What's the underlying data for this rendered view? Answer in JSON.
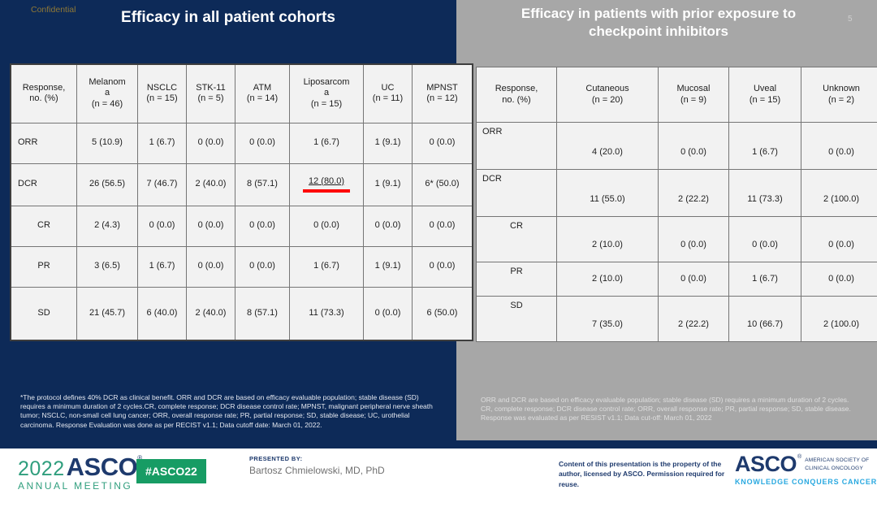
{
  "confidential_label": "Confidential",
  "page_number": "5",
  "colors": {
    "slide_navy": "#0D2A58",
    "panel_gray": "#A7A7A7",
    "table_cell_bg": "#F2F2F2",
    "highlight_red": "#FE0000",
    "asco_green": "#179C64",
    "asco_navy": "#1E3A6D",
    "asco_teal": "#2F9E7D",
    "asco_blue": "#2AA9E0",
    "confidential_gold": "#8F7836"
  },
  "left_panel": {
    "title": "Efficacy in all patient cohorts",
    "table": {
      "header": [
        "Response,\nno. (%)",
        "Melanom\na\n(n = 46)",
        "NSCLC\n(n = 15)",
        "STK-11\n(n = 5)",
        "ATM\n(n = 14)",
        "Liposarcom\na\n(n = 15)",
        "UC\n(n = 11)",
        "MPNST\n(n = 12)"
      ],
      "rows": [
        {
          "label": "ORR",
          "indent": false,
          "values": [
            "5 (10.9)",
            "1 (6.7)",
            "0 (0.0)",
            "0 (0.0)",
            "1 (6.7)",
            "1 (9.1)",
            "0 (0.0)"
          ]
        },
        {
          "label": "DCR",
          "indent": false,
          "values": [
            "26 (56.5)",
            "7 (46.7)",
            "2 (40.0)",
            "8 (57.1)",
            {
              "text": "12 (80.0)",
              "highlight": "red-underline"
            },
            "1 (9.1)",
            "6* (50.0)"
          ]
        },
        {
          "label": "CR",
          "indent": true,
          "values": [
            "2 (4.3)",
            "0 (0.0)",
            "0 (0.0)",
            "0 (0.0)",
            "0 (0.0)",
            "0 (0.0)",
            "0 (0.0)"
          ]
        },
        {
          "label": "PR",
          "indent": true,
          "values": [
            "3 (6.5)",
            "1 (6.7)",
            "0 (0.0)",
            "0 (0.0)",
            "1 (6.7)",
            "1 (9.1)",
            "0 (0.0)"
          ]
        },
        {
          "label": "SD",
          "indent": true,
          "values": [
            "21 (45.7)",
            "6 (40.0)",
            "2 (40.0)",
            "8 (57.1)",
            "11 (73.3)",
            "0 (0.0)",
            "6 (50.0)"
          ]
        }
      ]
    },
    "footnote": "*The protocol defines 40% DCR as clinical benefit. ORR and DCR are based on efficacy evaluable population; stable disease (SD) requires a minimum duration of 2 cycles.CR, complete response; DCR disease control rate; MPNST, malignant peripheral nerve sheath tumor; NSCLC, non-small cell lung cancer; ORR, overall response rate; PR, partial response; SD, stable disease; UC, urothelial carcinoma. Response Evaluation was done as per RECIST v1.1; Data cutoff date: March 01, 2022."
  },
  "right_panel": {
    "title": "Efficacy in patients with prior exposure to\ncheckpoint inhibitors",
    "table": {
      "header": [
        "Response,\nno. (%)",
        "Cutaneous\n(n = 20)",
        "Mucosal\n(n = 9)",
        "Uveal\n(n = 15)",
        "Unknown\n(n = 2)"
      ],
      "rows": [
        {
          "label": "ORR",
          "indent": false,
          "values": [
            "4 (20.0)",
            "0 (0.0)",
            "1 (6.7)",
            "0 (0.0)"
          ]
        },
        {
          "label": "DCR",
          "indent": false,
          "values": [
            "11 (55.0)",
            "2 (22.2)",
            "11 (73.3)",
            "2 (100.0)"
          ]
        },
        {
          "label": "CR",
          "indent": true,
          "values": [
            "2 (10.0)",
            "0 (0.0)",
            "0 (0.0)",
            "0 (0.0)"
          ]
        },
        {
          "label": "PR",
          "indent": true,
          "values": [
            "2 (10.0)",
            "0 (0.0)",
            "1 (6.7)",
            "0 (0.0)"
          ]
        },
        {
          "label": "SD",
          "indent": true,
          "values": [
            "7 (35.0)",
            "2 (22.2)",
            "10 (66.7)",
            "2 (100.0)"
          ]
        }
      ]
    },
    "footnote": "ORR and DCR are based on efficacy evaluable population; stable disease (SD) requires a minimum duration of 2 cycles. CR, complete response; DCR disease control rate; ORR, overall response rate; PR, partial response; SD, stable disease. Response was evaluated as per RESIST v1.1; Data cut-off: March 01, 2022"
  },
  "footer": {
    "logo": {
      "year": "2022",
      "name": "ASCO",
      "reg": "®",
      "meeting": "ANNUAL MEETING"
    },
    "hashtag": "#ASCO22",
    "presented_by_label": "PRESENTED BY:",
    "presenter_name": "Bartosz Chmielowski, MD, PhD",
    "copyright_line": "Content of this presentation is the property of the author, licensed by ASCO. Permission required for reuse.",
    "asco_logo": {
      "name": "ASCO",
      "reg": "®",
      "society": "AMERICAN SOCIETY OF\nCLINICAL ONCOLOGY",
      "tagline": "KNOWLEDGE CONQUERS CANCER"
    }
  }
}
